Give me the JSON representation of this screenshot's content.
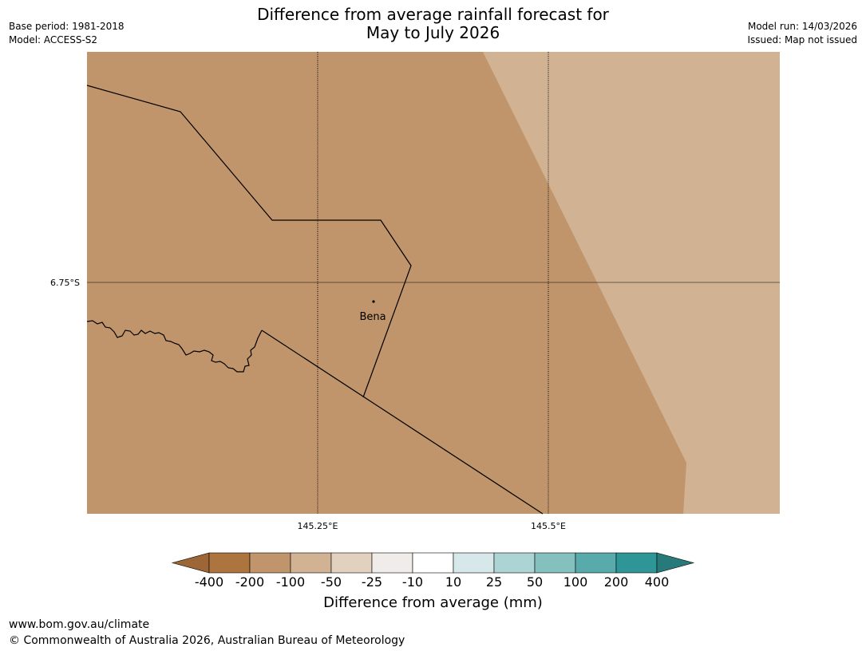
{
  "title": {
    "line1": "Difference from average rainfall forecast for",
    "line2": "May to July 2026"
  },
  "meta_left": {
    "base_period": "Base period: 1981-2018",
    "model": "Model: ACCESS-S2"
  },
  "meta_right": {
    "model_run": "Model run: 14/03/2026",
    "issued": "Issued: Map not issued"
  },
  "map": {
    "lat_label": "6.75°S",
    "lon_labels": [
      "145.25°E",
      "145.5°E"
    ],
    "town": "Bena",
    "colors": {
      "drier_200_100": "#c0956b",
      "drier_100_50": "#d1b293"
    }
  },
  "colorbar": {
    "labels": [
      "-400",
      "-200",
      "-100",
      "-50",
      "-25",
      "-10",
      "10",
      "25",
      "50",
      "100",
      "200",
      "400"
    ],
    "colors": [
      "#9c6637",
      "#ac743f",
      "#c0956b",
      "#d1b293",
      "#e3d1bf",
      "#efece9",
      "#ffffff",
      "#d6e8e9",
      "#acd4d4",
      "#84c0be",
      "#58aaab",
      "#2e9696",
      "#287a7a"
    ],
    "title": "Difference from average (mm)"
  },
  "footer": {
    "url": "www.bom.gov.au/climate",
    "copyright": "© Commonwealth of Australia 2026, Australian Bureau of Meteorology"
  }
}
